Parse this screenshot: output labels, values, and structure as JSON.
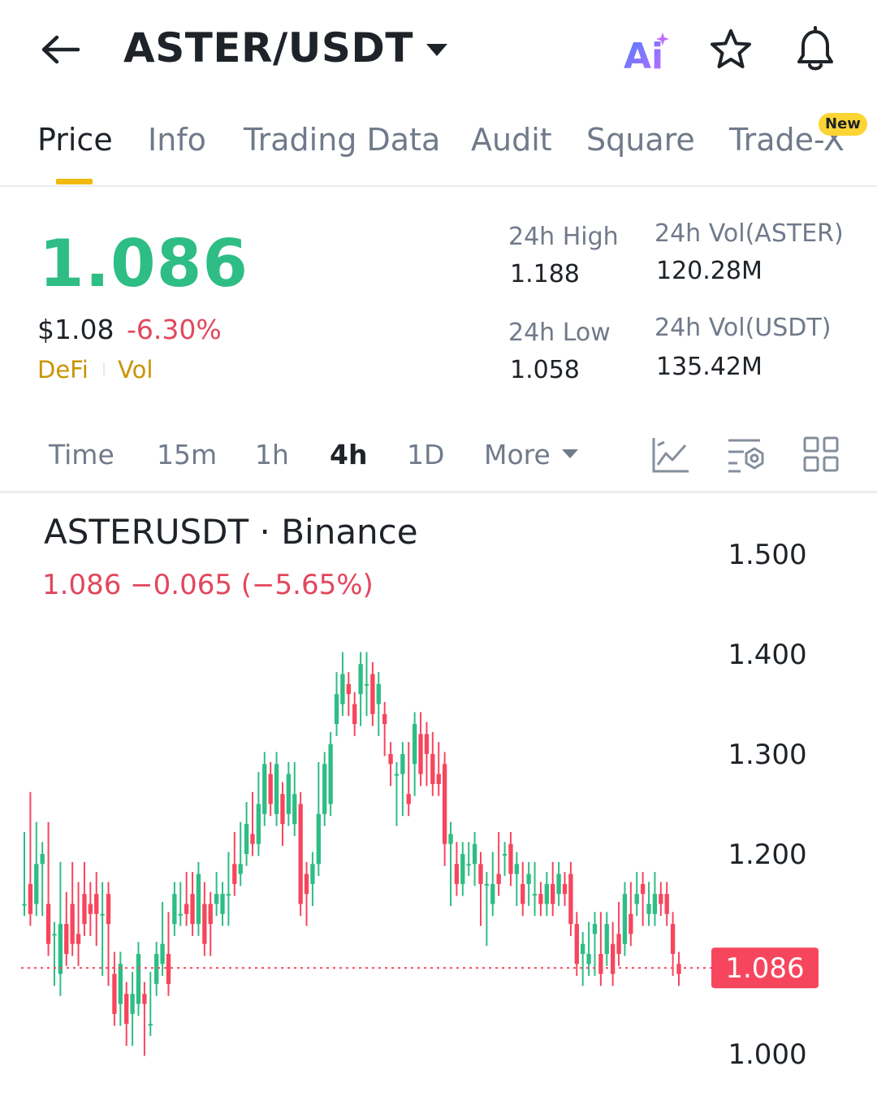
{
  "header": {
    "pair": "ASTER/USDT",
    "ai_label": "Ai"
  },
  "tabs": [
    {
      "label": "Price",
      "active": true
    },
    {
      "label": "Info"
    },
    {
      "label": "Trading Data"
    },
    {
      "label": "Audit"
    },
    {
      "label": "Square"
    },
    {
      "label": "Trade-X",
      "badge": "New"
    }
  ],
  "price": {
    "last": "1.086",
    "usd": "$1.08",
    "change_pct": "-6.30%",
    "tags": [
      "DeFi",
      "Vol"
    ]
  },
  "stats": {
    "high_label": "24h High",
    "high": "1.188",
    "low_label": "24h Low",
    "low": "1.058",
    "vol_base_label": "24h Vol(ASTER)",
    "vol_base": "120.28M",
    "vol_quote_label": "24h Vol(USDT)",
    "vol_quote": "135.42M"
  },
  "timeframes": [
    {
      "label": "Time"
    },
    {
      "label": "15m"
    },
    {
      "label": "1h"
    },
    {
      "label": "4h",
      "active": true
    },
    {
      "label": "1D"
    },
    {
      "label": "More"
    }
  ],
  "chart": {
    "symbol": "ASTERUSDT · Binance",
    "change": "1.086  −0.065 (−5.65%)",
    "current_price_label": "1.086",
    "y_ticks": [
      "1.500",
      "1.400",
      "1.300",
      "1.200",
      "1.000"
    ]
  },
  "chart_data": {
    "type": "candlestick",
    "ylim": [
      0.985,
      1.52
    ],
    "current": 1.086,
    "up_color": "#2ebd85",
    "down_color": "#f6465d",
    "candles": [
      [
        1.15,
        1.21,
        1.17,
        1.15
      ],
      [
        1.17,
        1.25,
        1.19,
        1.14
      ],
      [
        1.15,
        1.22,
        1.16,
        1.19
      ],
      [
        1.19,
        1.19,
        1.15,
        1.2
      ],
      [
        1.15,
        1.22,
        1.17,
        1.11
      ],
      [
        1.12,
        1.12,
        1.08,
        1.12
      ],
      [
        1.08,
        1.18,
        1.07,
        1.13
      ],
      [
        1.13,
        1.12,
        1.15,
        1.1
      ],
      [
        1.15,
        1.18,
        1.12,
        1.11
      ],
      [
        1.12,
        1.1,
        1.16,
        1.11
      ],
      [
        1.16,
        1.18,
        1.15,
        1.13
      ],
      [
        1.15,
        1.13,
        1.16,
        1.14
      ],
      [
        1.16,
        1.12,
        1.17,
        1.14
      ],
      [
        1.14,
        1.09,
        1.16,
        1.14
      ],
      [
        1.16,
        1.16,
        1.08,
        1.13
      ],
      [
        1.08,
        1.09,
        1.05,
        1.04
      ],
      [
        1.05,
        1.04,
        1.06,
        1.09
      ],
      [
        1.06,
        1.05,
        1.02,
        1.03
      ],
      [
        1.04,
        1.07,
        1.02,
        1.06
      ],
      [
        1.05,
        1.07,
        1.06,
        1.1
      ],
      [
        1.06,
        1.04,
        1.01,
        1.05
      ],
      [
        1.03,
        1.06,
        1.07,
        1.03
      ],
      [
        1.07,
        1.1,
        1.09,
        1.1
      ],
      [
        1.09,
        1.14,
        1.1,
        1.11
      ],
      [
        1.1,
        1.13,
        1.11,
        1.07
      ],
      [
        1.13,
        1.15,
        1.14,
        1.16
      ],
      [
        1.14,
        1.16,
        1.16,
        1.14
      ],
      [
        1.15,
        1.17,
        1.16,
        1.14
      ],
      [
        1.16,
        1.17,
        1.13,
        1.13
      ],
      [
        1.13,
        1.16,
        1.15,
        1.18
      ],
      [
        1.15,
        1.16,
        1.13,
        1.11
      ],
      [
        1.15,
        1.11,
        1.15,
        1.13
      ],
      [
        1.15,
        1.16,
        1.17,
        1.16
      ],
      [
        1.14,
        1.14,
        1.16,
        1.16
      ],
      [
        1.16,
        1.14,
        1.19,
        1.16
      ],
      [
        1.19,
        1.21,
        1.17,
        1.17
      ],
      [
        1.18,
        1.22,
        1.2,
        1.19
      ],
      [
        1.2,
        1.24,
        1.21,
        1.23
      ],
      [
        1.22,
        1.25,
        1.21,
        1.21
      ],
      [
        1.21,
        1.26,
        1.27,
        1.25
      ],
      [
        1.24,
        1.27,
        1.28,
        1.29
      ],
      [
        1.28,
        1.26,
        1.25,
        1.25
      ],
      [
        1.24,
        1.28,
        1.26,
        1.29
      ],
      [
        1.26,
        1.24,
        1.22,
        1.23
      ],
      [
        1.24,
        1.28,
        1.26,
        1.28
      ],
      [
        1.23,
        1.28,
        1.26,
        1.26
      ],
      [
        1.25,
        1.22,
        1.17,
        1.15
      ],
      [
        1.18,
        1.14,
        1.15,
        1.16
      ],
      [
        1.17,
        1.16,
        1.19,
        1.19
      ],
      [
        1.19,
        1.28,
        1.24,
        1.24
      ],
      [
        1.24,
        1.25,
        1.26,
        1.29
      ],
      [
        1.25,
        1.3,
        1.31,
        1.31
      ],
      [
        1.33,
        1.37,
        1.35,
        1.36
      ],
      [
        1.35,
        1.39,
        1.36,
        1.38
      ],
      [
        1.37,
        1.36,
        1.35,
        1.36
      ],
      [
        1.35,
        1.34,
        1.34,
        1.33
      ],
      [
        1.36,
        1.34,
        1.35,
        1.39
      ],
      [
        1.37,
        1.39,
        1.35,
        1.37
      ],
      [
        1.38,
        1.34,
        1.34,
        1.34
      ],
      [
        1.35,
        1.33,
        1.34,
        1.37
      ],
      [
        1.34,
        1.31,
        1.32,
        1.33
      ],
      [
        1.3,
        1.29,
        1.28,
        1.29
      ],
      [
        1.28,
        1.24,
        1.27,
        1.28
      ],
      [
        1.28,
        1.29,
        1.25,
        1.3
      ],
      [
        1.26,
        1.26,
        1.3,
        1.25
      ],
      [
        1.29,
        1.27,
        1.32,
        1.33
      ],
      [
        1.32,
        1.31,
        1.33,
        1.28
      ],
      [
        1.32,
        1.28,
        1.31,
        1.3
      ],
      [
        1.3,
        1.31,
        1.29,
        1.27
      ],
      [
        1.28,
        1.27,
        1.3,
        1.27
      ],
      [
        1.29,
        1.21,
        1.2,
        1.21
      ],
      [
        1.21,
        1.16,
        1.17,
        1.22
      ],
      [
        1.19,
        1.2,
        1.17,
        1.17
      ],
      [
        1.17,
        1.19,
        1.18,
        1.2
      ],
      [
        1.19,
        1.2,
        1.19,
        1.19
      ],
      [
        1.19,
        1.21,
        1.18,
        1.21
      ],
      [
        1.19,
        1.16,
        1.14,
        1.17
      ],
      [
        1.17,
        1.15,
        1.12,
        1.17
      ],
      [
        1.15,
        1.19,
        1.15,
        1.17
      ],
      [
        1.18,
        1.19,
        1.21,
        1.17
      ],
      [
        1.2,
        1.2,
        1.19,
        1.2
      ],
      [
        1.21,
        1.2,
        1.19,
        1.18
      ],
      [
        1.18,
        1.18,
        1.16,
        1.19
      ],
      [
        1.17,
        1.18,
        1.17,
        1.15
      ],
      [
        1.17,
        1.17,
        1.16,
        1.18
      ],
      [
        1.16,
        1.18,
        1.15,
        1.16
      ],
      [
        1.16,
        1.16,
        1.15,
        1.15
      ],
      [
        1.15,
        1.17,
        1.15,
        1.17
      ],
      [
        1.17,
        1.18,
        1.17,
        1.15
      ],
      [
        1.16,
        1.16,
        1.17,
        1.18
      ],
      [
        1.17,
        1.16,
        1.17,
        1.16
      ],
      [
        1.18,
        1.16,
        1.13,
        1.13
      ],
      [
        1.13,
        1.09,
        1.1,
        1.09
      ],
      [
        1.1,
        1.08,
        1.1,
        1.11
      ],
      [
        1.09,
        1.09,
        1.12,
        1.1
      ],
      [
        1.12,
        1.12,
        1.09,
        1.13
      ],
      [
        1.1,
        1.13,
        1.11,
        1.08
      ],
      [
        1.1,
        1.12,
        1.1,
        1.13
      ],
      [
        1.11,
        1.11,
        1.12,
        1.08
      ],
      [
        1.12,
        1.14,
        1.12,
        1.1
      ],
      [
        1.11,
        1.16,
        1.13,
        1.16
      ],
      [
        1.14,
        1.16,
        1.16,
        1.12
      ],
      [
        1.15,
        1.17,
        1.17,
        1.16
      ],
      [
        1.17,
        1.16,
        1.14,
        1.16
      ],
      [
        1.14,
        1.16,
        1.14,
        1.15
      ],
      [
        1.14,
        1.17,
        1.16,
        1.16
      ],
      [
        1.16,
        1.15,
        1.15,
        1.15
      ],
      [
        1.16,
        1.15,
        1.14,
        1.14
      ],
      [
        1.13,
        1.11,
        1.09,
        1.1
      ],
      [
        1.09,
        1.09,
        1.09,
        1.08
      ]
    ]
  }
}
